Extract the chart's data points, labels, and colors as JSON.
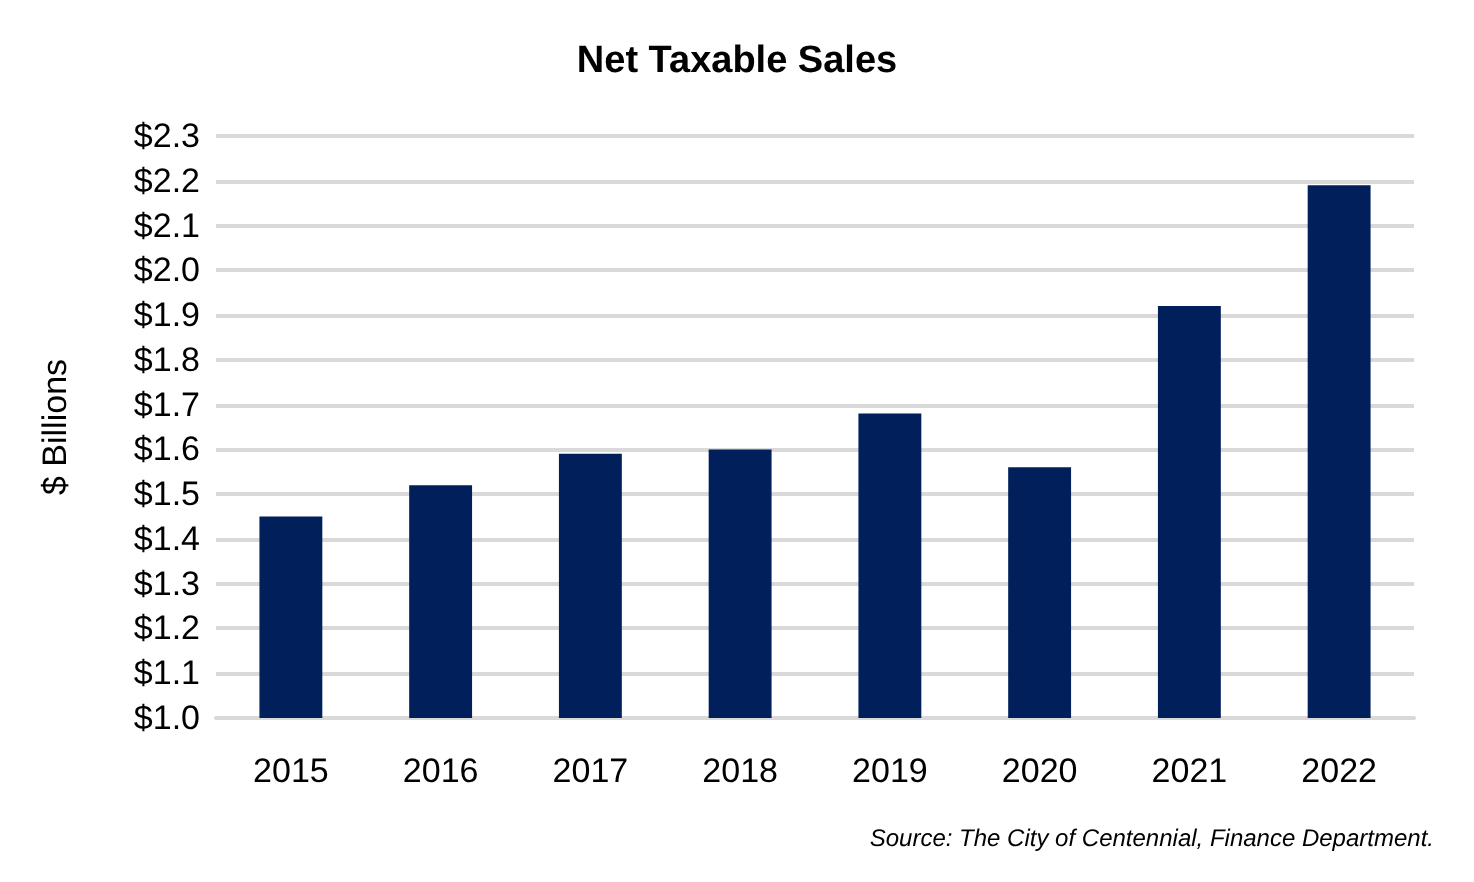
{
  "chart_data": {
    "type": "bar",
    "title": "Net Taxable Sales",
    "ylabel": "$ Billions",
    "categories": [
      "2015",
      "2016",
      "2017",
      "2018",
      "2019",
      "2020",
      "2021",
      "2022"
    ],
    "values": [
      1.45,
      1.52,
      1.59,
      1.6,
      1.68,
      1.56,
      1.92,
      2.19
    ],
    "color": "#001f5b",
    "ylim": [
      1.0,
      2.3
    ],
    "yticks": [
      {
        "value": 1.0,
        "label": "$1.0"
      },
      {
        "value": 1.1,
        "label": "$1.1"
      },
      {
        "value": 1.2,
        "label": "$1.2"
      },
      {
        "value": 1.3,
        "label": "$1.3"
      },
      {
        "value": 1.4,
        "label": "$1.4"
      },
      {
        "value": 1.5,
        "label": "$1.5"
      },
      {
        "value": 1.6,
        "label": "$1.6"
      },
      {
        "value": 1.7,
        "label": "$1.7"
      },
      {
        "value": 1.8,
        "label": "$1.8"
      },
      {
        "value": 1.9,
        "label": "$1.9"
      },
      {
        "value": 2.0,
        "label": "$2.0"
      },
      {
        "value": 2.1,
        "label": "$2.1"
      },
      {
        "value": 2.2,
        "label": "$2.2"
      },
      {
        "value": 2.3,
        "label": "$2.3"
      }
    ],
    "grid": "y",
    "annotations": [
      "Source: The City of Centennial, Finance Department."
    ]
  }
}
